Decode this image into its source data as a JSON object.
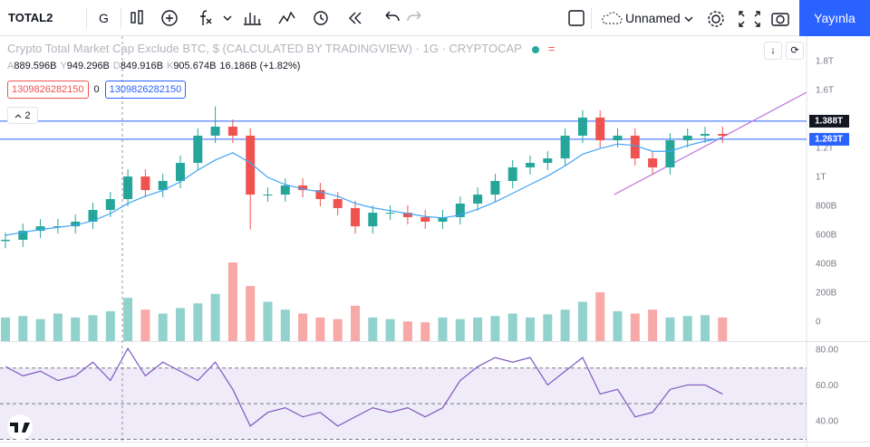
{
  "toolbar": {
    "symbol": "TOTAL2",
    "interval": "G",
    "layout_name": "Unnamed",
    "publish": "Yayınla"
  },
  "legend": {
    "title": "Crypto Total Market Cap Exclude BTC, $ (CALCULATED BY TRADINGVIEW) · 1G · CRYPTOCAP",
    "ohlc": [
      {
        "key": "A",
        "value": "889.596B"
      },
      {
        "key": "Y",
        "value": "949.296B"
      },
      {
        "key": "D",
        "value": "849.916B"
      },
      {
        "key": "K",
        "value": "905.674B"
      }
    ],
    "change": "16.186B (+1.82%)",
    "inputs": [
      "1309826282150",
      "0",
      "1309826282150"
    ],
    "collapsed_count": "2"
  },
  "chart_data": [
    {
      "type": "candlestick",
      "title": "Crypto Total Market Cap Exclude BTC",
      "open": [
        560,
        569,
        631,
        662,
        662,
        694,
        775,
        850,
        1006,
        912,
        975,
        1100,
        1288,
        1350,
        1288,
        881,
        881,
        944,
        912,
        850,
        788,
        662,
        756,
        756,
        725,
        694,
        725,
        819,
        881,
        975,
        1069,
        1100,
        1131,
        1288,
        1413,
        1256,
        1288,
        1131,
        1069,
        1256,
        1288,
        1300
      ],
      "high": [
        619,
        681,
        712,
        712,
        744,
        825,
        900,
        1056,
        1056,
        1025,
        1150,
        1338,
        1490,
        1400,
        1338,
        931,
        994,
        994,
        962,
        900,
        838,
        806,
        806,
        806,
        775,
        775,
        869,
        931,
        1025,
        1119,
        1150,
        1181,
        1338,
        1463,
        1463,
        1338,
        1338,
        1181,
        1306,
        1338,
        1350,
        1350
      ],
      "low": [
        510,
        519,
        581,
        612,
        612,
        644,
        725,
        800,
        862,
        862,
        925,
        1050,
        1238,
        1238,
        640,
        831,
        831,
        862,
        800,
        738,
        612,
        612,
        706,
        675,
        644,
        644,
        675,
        769,
        831,
        925,
        1019,
        1050,
        1081,
        1238,
        1206,
        1206,
        1081,
        1019,
        1019,
        1206,
        1238,
        1238
      ],
      "close": [
        569,
        631,
        662,
        662,
        694,
        775,
        850,
        1006,
        912,
        975,
        1100,
        1288,
        1350,
        1288,
        881,
        881,
        944,
        912,
        850,
        788,
        662,
        756,
        756,
        725,
        694,
        725,
        819,
        881,
        975,
        1069,
        1100,
        1131,
        1288,
        1413,
        1256,
        1288,
        1131,
        1069,
        1256,
        1288,
        1300,
        1288
      ],
      "ma": [
        600,
        620,
        640,
        655,
        670,
        700,
        750,
        820,
        870,
        910,
        970,
        1050,
        1120,
        1170,
        1100,
        1000,
        950,
        920,
        900,
        870,
        820,
        790,
        770,
        750,
        730,
        720,
        740,
        780,
        830,
        890,
        950,
        1010,
        1080,
        1160,
        1200,
        1230,
        1220,
        1180,
        1180,
        1220,
        1250,
        1270
      ],
      "up_color": "#26a69a",
      "down_color": "#ef5350",
      "ma_color": "#42a5f5",
      "ylim": [
        -131,
        1975
      ],
      "yticks": [
        0,
        {
          "value": 200,
          "label": "200B"
        },
        {
          "value": 400,
          "label": "400B"
        },
        {
          "value": 600,
          "label": "600B"
        },
        {
          "value": 800,
          "label": "800B"
        },
        {
          "value": 1000,
          "label": "1T"
        },
        {
          "value": 1200,
          "label": "1.2T"
        },
        {
          "value": 1600,
          "label": "1.6T"
        },
        {
          "value": 1800,
          "label": "1.8T"
        }
      ],
      "hlines": [
        {
          "value": 1388,
          "label": "1.388T",
          "badge": "#131722"
        },
        {
          "value": 1263,
          "label": "1.263T",
          "badge": "#2962ff"
        }
      ],
      "hline_color": "#2962ff",
      "trendline": {
        "x": [
          34.8,
          45.8
        ],
        "y": [
          881,
          1587
        ],
        "color": "#c27ce0"
      }
    },
    {
      "type": "volume",
      "values": [
        30,
        32,
        28,
        35,
        30,
        33,
        38,
        55,
        40,
        35,
        42,
        48,
        60,
        100,
        70,
        50,
        40,
        35,
        30,
        28,
        45,
        30,
        28,
        25,
        24,
        30,
        28,
        30,
        32,
        35,
        30,
        34,
        40,
        50,
        62,
        38,
        35,
        40,
        30,
        32,
        33,
        30
      ],
      "ylim": [
        0,
        100
      ]
    },
    {
      "type": "rsi",
      "values": [
        70.8,
        65.6,
        68.2,
        63,
        65.6,
        73.3,
        63,
        81,
        65.6,
        73.3,
        68.2,
        63,
        73.3,
        58,
        37.4,
        45.1,
        47.7,
        42.6,
        45.1,
        37.4,
        42.6,
        47.7,
        45.1,
        47.7,
        42.6,
        47.7,
        63,
        70.8,
        75.9,
        73.3,
        75.9,
        60.5,
        68.2,
        75.9,
        55.4,
        58,
        42.6,
        45.1,
        58,
        60.5,
        60.5,
        55.4
      ],
      "color": "#7e57c2",
      "ylim": [
        28.7,
        84.6
      ],
      "yticks": [
        {
          "value": 40,
          "label": "40.00"
        },
        {
          "value": 60,
          "label": "60.00"
        },
        {
          "value": 80,
          "label": "80.00"
        }
      ],
      "levels": [
        30,
        50,
        70
      ]
    }
  ]
}
